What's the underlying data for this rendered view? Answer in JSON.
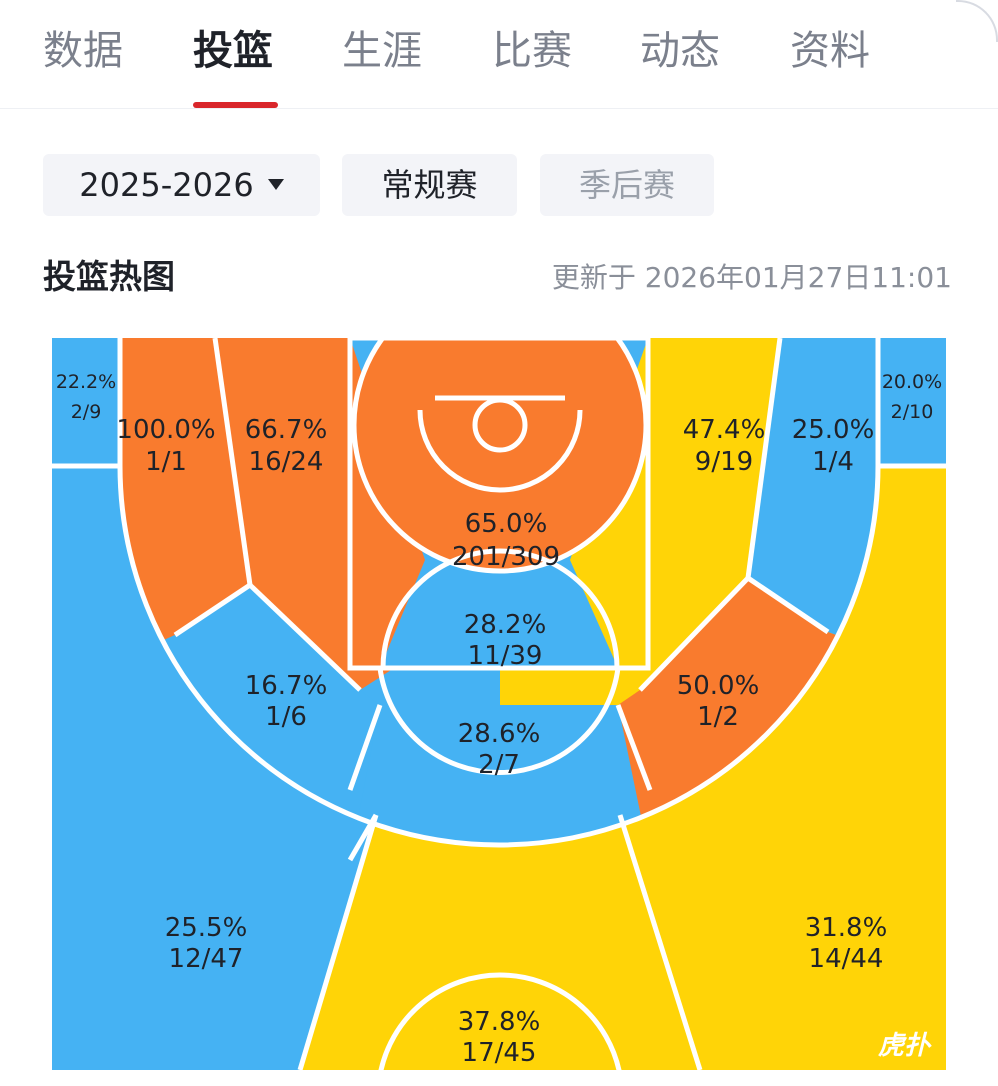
{
  "tabs": [
    {
      "label": "数据",
      "active": false
    },
    {
      "label": "投篮",
      "active": true
    },
    {
      "label": "生涯",
      "active": false
    },
    {
      "label": "比赛",
      "active": false
    },
    {
      "label": "动态",
      "active": false
    },
    {
      "label": "资料",
      "active": false
    }
  ],
  "filters": {
    "season": "2025-2026",
    "regular": "常规赛",
    "playoff": "季后赛"
  },
  "heatmap": {
    "title": "投篮热图",
    "updated": "更新于 2026年01月27日11:01",
    "colors": {
      "hot": "#f97b2e",
      "warm": "#ffd407",
      "cold": "#45b2f3",
      "line": "#ffffff"
    },
    "zones": [
      {
        "id": "left-corner-three",
        "pct": "22.2%",
        "frac": "2/9",
        "level": "cold"
      },
      {
        "id": "left-baseline-mid",
        "pct": "100.0%",
        "frac": "1/1",
        "level": "hot"
      },
      {
        "id": "left-short-mid",
        "pct": "66.7%",
        "frac": "16/24",
        "level": "hot"
      },
      {
        "id": "restricted-area",
        "pct": "65.0%",
        "frac": "201/309",
        "level": "hot"
      },
      {
        "id": "right-short-mid",
        "pct": "47.4%",
        "frac": "9/19",
        "level": "warm"
      },
      {
        "id": "right-baseline-mid",
        "pct": "25.0%",
        "frac": "1/4",
        "level": "cold"
      },
      {
        "id": "right-corner-three",
        "pct": "20.0%",
        "frac": "2/10",
        "level": "cold"
      },
      {
        "id": "paint-non-ra",
        "pct": "28.2%",
        "frac": "11/39",
        "level": "cold"
      },
      {
        "id": "left-elbow-mid",
        "pct": "16.7%",
        "frac": "1/6",
        "level": "cold"
      },
      {
        "id": "right-elbow-mid",
        "pct": "50.0%",
        "frac": "1/2",
        "level": "hot"
      },
      {
        "id": "top-key-mid",
        "pct": "28.6%",
        "frac": "2/7",
        "level": "cold"
      },
      {
        "id": "left-wing-three",
        "pct": "25.5%",
        "frac": "12/47",
        "level": "cold"
      },
      {
        "id": "right-wing-three",
        "pct": "31.8%",
        "frac": "14/44",
        "level": "warm"
      },
      {
        "id": "top-key-three",
        "pct": "37.8%",
        "frac": "17/45",
        "level": "warm"
      }
    ],
    "watermark": "虎扑"
  }
}
